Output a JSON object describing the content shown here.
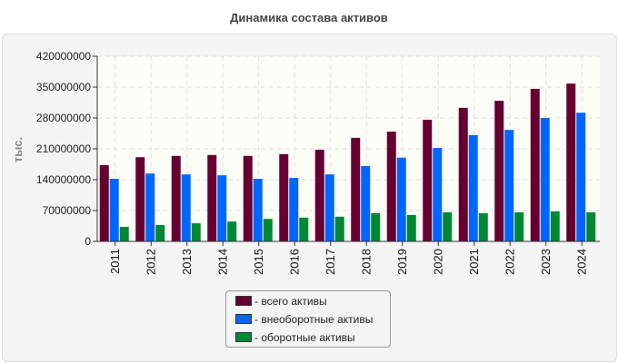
{
  "chart_data": {
    "type": "bar",
    "title": "Динамика состава активов",
    "ylabel": "тыс.",
    "xlabel": "",
    "ylim": [
      0,
      420000000
    ],
    "yticks": [
      "0",
      "70000000",
      "140000000",
      "210000000",
      "280000000",
      "350000000",
      "420000000"
    ],
    "categories": [
      "2011",
      "2012",
      "2013",
      "2014",
      "2015",
      "2016",
      "2017",
      "2018",
      "2019",
      "2020",
      "2021",
      "2022",
      "2023",
      "2024"
    ],
    "series": [
      {
        "name": "- всего активы",
        "color": "#660033",
        "values": [
          173000000,
          191000000,
          194000000,
          196000000,
          194000000,
          198000000,
          208000000,
          235000000,
          249000000,
          276000000,
          303000000,
          319000000,
          346000000,
          358000000
        ]
      },
      {
        "name": "- внеоборотные активы",
        "color": "#0066ff",
        "values": [
          142000000,
          154000000,
          152000000,
          150000000,
          142000000,
          144000000,
          152000000,
          171000000,
          190000000,
          212000000,
          241000000,
          253000000,
          280000000,
          292000000
        ]
      },
      {
        "name": "- оборотные активы",
        "color": "#008833",
        "values": [
          33000000,
          37000000,
          41000000,
          45000000,
          51000000,
          54000000,
          56000000,
          64000000,
          60000000,
          66000000,
          64000000,
          66000000,
          68000000,
          66000000
        ]
      }
    ],
    "grid": true,
    "legend": "bottom-center"
  }
}
